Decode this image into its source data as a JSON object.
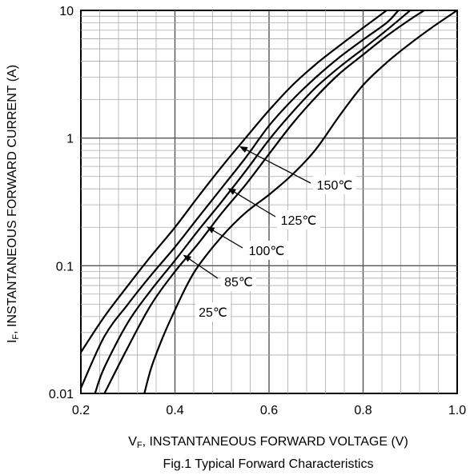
{
  "chart_data": {
    "type": "line",
    "x_scale": "linear",
    "y_scale": "log",
    "xlim": [
      0.2,
      1.0
    ],
    "ylim": [
      0.01,
      10
    ],
    "grid": true,
    "x_ticks": [
      "0.2",
      "0.4",
      "0.6",
      "0.8",
      "1.0"
    ],
    "y_ticks": [
      "0.01",
      "0.1",
      "1",
      "10"
    ],
    "xlabel": {
      "prefix": "V",
      "subscript": "F",
      "rest": ", INSTANTANEOUS FORWARD VOLTAGE (V)"
    },
    "ylabel": {
      "prefix": "I",
      "subscript": "F",
      "rest": ", INSTANTANEOUS FORWARD CURRENT (A)"
    },
    "caption": "Fig.1 Typical Forward Characteristics",
    "series": [
      {
        "name": "150℃",
        "x": [
          0.2,
          0.25,
          0.3,
          0.35,
          0.4,
          0.45,
          0.5,
          0.55,
          0.6,
          0.65,
          0.7,
          0.75,
          0.8,
          0.85
        ],
        "y": [
          0.021,
          0.04,
          0.07,
          0.12,
          0.2,
          0.35,
          0.6,
          1.0,
          1.65,
          2.6,
          3.8,
          5.3,
          7.3,
          10
        ]
      },
      {
        "name": "125℃",
        "x": [
          0.2,
          0.25,
          0.3,
          0.35,
          0.4,
          0.45,
          0.5,
          0.55,
          0.6,
          0.65,
          0.7,
          0.75,
          0.8,
          0.85,
          0.875
        ],
        "y": [
          0.011,
          0.028,
          0.05,
          0.085,
          0.14,
          0.24,
          0.41,
          0.7,
          1.25,
          2.0,
          3.0,
          4.3,
          5.9,
          8.0,
          10
        ]
      },
      {
        "name": "100℃",
        "x": [
          0.23,
          0.25,
          0.3,
          0.35,
          0.4,
          0.45,
          0.5,
          0.55,
          0.6,
          0.65,
          0.7,
          0.75,
          0.8,
          0.85,
          0.9
        ],
        "y": [
          0.01,
          0.016,
          0.036,
          0.065,
          0.11,
          0.19,
          0.32,
          0.55,
          0.97,
          1.6,
          2.5,
          3.6,
          5.0,
          7.0,
          10
        ]
      },
      {
        "name": "85℃",
        "x": [
          0.25,
          0.3,
          0.35,
          0.4,
          0.45,
          0.5,
          0.55,
          0.6,
          0.65,
          0.7,
          0.75,
          0.8,
          0.85,
          0.9,
          0.93
        ],
        "y": [
          0.01,
          0.023,
          0.05,
          0.09,
          0.15,
          0.26,
          0.43,
          0.75,
          1.3,
          2.1,
          3.2,
          4.5,
          6.3,
          8.5,
          10
        ]
      },
      {
        "name": "25℃",
        "x": [
          0.335,
          0.35,
          0.375,
          0.4,
          0.425,
          0.45,
          0.5,
          0.55,
          0.6,
          0.65,
          0.7,
          0.75,
          0.8,
          0.85,
          0.9,
          0.95,
          1.0
        ],
        "y": [
          0.01,
          0.016,
          0.028,
          0.045,
          0.07,
          0.1,
          0.17,
          0.26,
          0.36,
          0.52,
          0.82,
          1.5,
          2.6,
          3.9,
          5.5,
          7.5,
          10
        ]
      }
    ],
    "annotations": [
      {
        "label": "150℃",
        "point": [
          0.54,
          0.85
        ]
      },
      {
        "label": "125℃",
        "point": [
          0.515,
          0.4
        ]
      },
      {
        "label": "100℃",
        "point": [
          0.47,
          0.2
        ]
      },
      {
        "label": "85℃",
        "point": [
          0.42,
          0.12
        ]
      },
      {
        "label": "25℃",
        "point": null
      }
    ]
  }
}
